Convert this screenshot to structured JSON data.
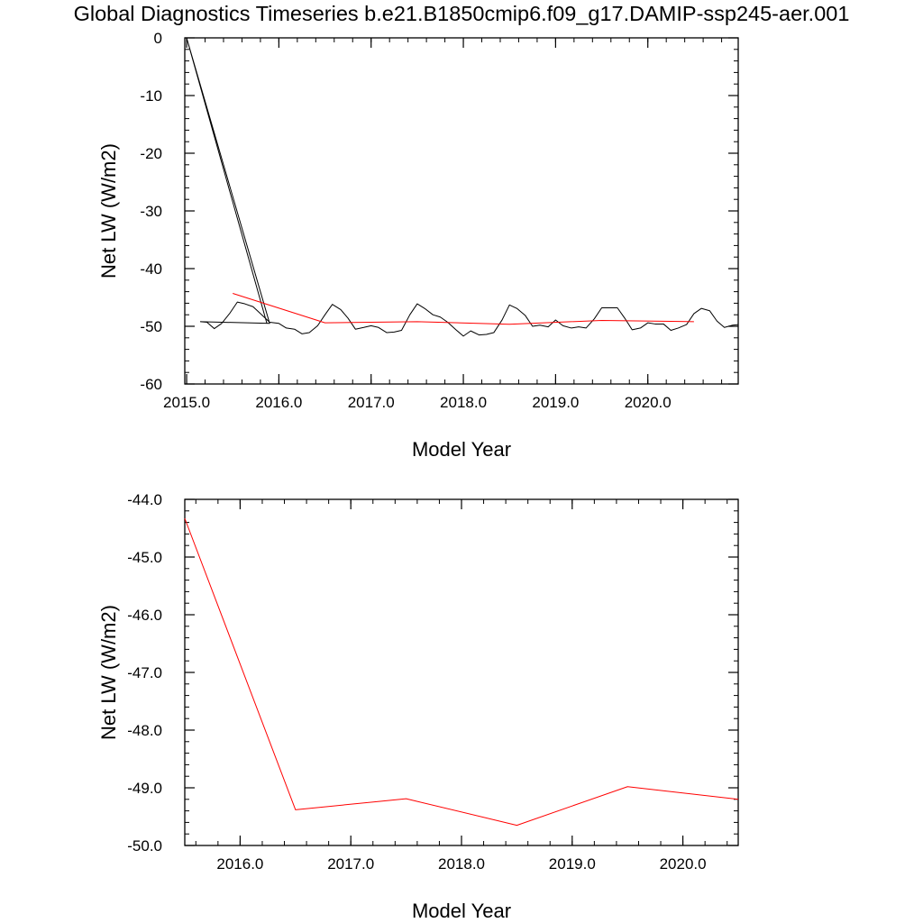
{
  "title": "Global Diagnostics Timeseries b.e21.B1850cmip6.f09_g17.DAMIP-ssp245-aer.001",
  "colors": {
    "monthly": "#000000",
    "annual": "#ff0000",
    "axes": "#000000"
  },
  "chart_data": [
    {
      "type": "line",
      "xlabel": "Model Year",
      "ylabel": "Net LW (W/m2)",
      "xlim": [
        2014.98,
        2020.98
      ],
      "ylim": [
        -60,
        0
      ],
      "x_ticks": [
        2015.0,
        2016.0,
        2017.0,
        2018.0,
        2019.0,
        2020.0
      ],
      "x_tick_labels": [
        "2015.0",
        "2016.0",
        "2017.0",
        "2018.0",
        "2019.0",
        "2020.0"
      ],
      "y_ticks": [
        0,
        -10,
        -20,
        -30,
        -40,
        -50,
        -60
      ],
      "y_tick_labels": [
        "0",
        "-10",
        "-20",
        "-30",
        "-40",
        "-50",
        "-60"
      ],
      "grid": false,
      "series": [
        {
          "color": "#000000",
          "x": [
            2015.0,
            2015.87,
            2015.0,
            2015.9,
            2015.15,
            2015.22,
            2015.3,
            2015.38,
            2015.47,
            2015.55,
            2015.63,
            2015.72,
            2015.9,
            2016.0,
            2016.08,
            2016.17,
            2016.25,
            2016.33,
            2016.42,
            2016.5,
            2016.58,
            2016.67,
            2016.75,
            2016.83,
            2016.92,
            2017.0,
            2017.08,
            2017.17,
            2017.25,
            2017.33,
            2017.42,
            2017.5,
            2017.58,
            2017.67,
            2017.75,
            2017.83,
            2017.92,
            2018.0,
            2018.08,
            2018.17,
            2018.25,
            2018.33,
            2018.42,
            2018.5,
            2018.58,
            2018.67,
            2018.75,
            2018.83,
            2018.92,
            2019.0,
            2019.08,
            2019.17,
            2019.25,
            2019.33,
            2019.42,
            2019.5,
            2019.58,
            2019.67,
            2019.75,
            2019.83,
            2019.92,
            2020.0,
            2020.08,
            2020.17,
            2020.25,
            2020.33,
            2020.42,
            2020.5,
            2020.58,
            2020.67,
            2020.75,
            2020.83,
            2020.92,
            2020.98
          ],
          "y": [
            0,
            -49.5,
            0,
            -49.5,
            -49.2,
            -49.3,
            -50.4,
            -49.5,
            -47.7,
            -45.8,
            -46.1,
            -46.6,
            -49.3,
            -49.5,
            -50.3,
            -50.5,
            -51.3,
            -51.1,
            -49.9,
            -48.0,
            -46.2,
            -47.1,
            -48.6,
            -50.5,
            -50.2,
            -49.9,
            -50.2,
            -51.1,
            -51.0,
            -50.7,
            -48.0,
            -46.1,
            -46.9,
            -48.0,
            -48.4,
            -49.3,
            -50.6,
            -51.7,
            -50.8,
            -51.5,
            -51.4,
            -51.1,
            -48.9,
            -46.3,
            -46.9,
            -48.1,
            -50.0,
            -49.8,
            -50.1,
            -48.9,
            -49.9,
            -50.3,
            -50.1,
            -50.3,
            -48.7,
            -46.8,
            -46.8,
            -46.8,
            -48.6,
            -50.6,
            -50.3,
            -49.4,
            -49.6,
            -49.6,
            -50.7,
            -50.3,
            -49.7,
            -47.8,
            -46.9,
            -47.3,
            -49.1,
            -50.2,
            -49.8,
            -49.7
          ]
        },
        {
          "color": "#ff0000",
          "x": [
            2015.5,
            2016.5,
            2017.5,
            2018.5,
            2019.5,
            2020.5
          ],
          "y": [
            -44.3,
            -49.4,
            -49.2,
            -49.65,
            -48.98,
            -49.2
          ]
        }
      ]
    },
    {
      "type": "line",
      "xlabel": "Model Year",
      "ylabel": "Net LW (W/m2)",
      "xlim": [
        2015.5,
        2020.5
      ],
      "ylim": [
        -50.0,
        -44.0
      ],
      "x_ticks": [
        2016.0,
        2017.0,
        2018.0,
        2019.0,
        2020.0
      ],
      "x_tick_labels": [
        "2016.0",
        "2017.0",
        "2018.0",
        "2019.0",
        "2020.0"
      ],
      "y_ticks": [
        -44.0,
        -45.0,
        -46.0,
        -47.0,
        -48.0,
        -49.0,
        -50.0
      ],
      "y_tick_labels": [
        "-44.0",
        "-45.0",
        "-46.0",
        "-47.0",
        "-48.0",
        "-49.0",
        "-50.0"
      ],
      "grid": false,
      "series": [
        {
          "color": "#ff0000",
          "x": [
            2015.5,
            2016.5,
            2017.5,
            2018.5,
            2019.5,
            2020.5
          ],
          "y": [
            -44.33,
            -49.38,
            -49.19,
            -49.65,
            -48.98,
            -49.2
          ]
        }
      ]
    }
  ]
}
